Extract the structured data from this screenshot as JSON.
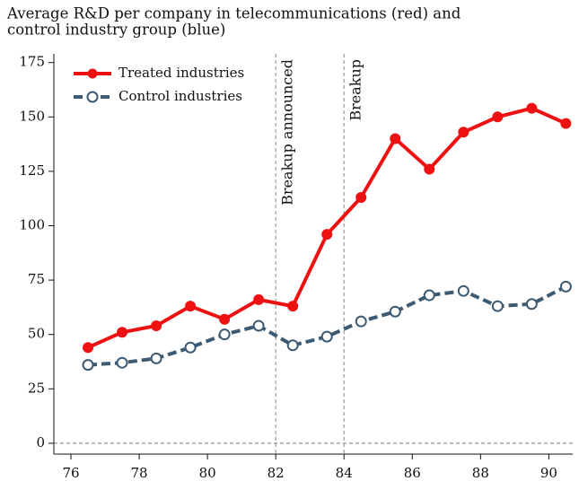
{
  "chart_data": {
    "type": "line",
    "title": [
      "Average R&D per company in telecommunications (red) and",
      "control industry group (blue)"
    ],
    "x": [
      76.5,
      77.5,
      78.5,
      79.5,
      80.5,
      81.5,
      82.5,
      83.5,
      84.5,
      85.5,
      86.5,
      87.5,
      88.5,
      89.5,
      90.5
    ],
    "series": [
      {
        "name": "Treated industries",
        "color": "#ee1111",
        "values": [
          44,
          51,
          54,
          63,
          57,
          66,
          63,
          96,
          113,
          140,
          126,
          143,
          150,
          154,
          147
        ]
      },
      {
        "name": "Control industries",
        "color": "#3d5a73",
        "values": [
          36,
          37,
          39,
          44,
          50,
          54,
          45,
          49,
          56,
          60.5,
          68,
          70,
          63,
          64,
          72
        ]
      }
    ],
    "xlim": [
      75.5,
      90.7
    ],
    "xticks": [
      76,
      78,
      80,
      82,
      84,
      86,
      88,
      90
    ],
    "ylim": [
      -5,
      179
    ],
    "yticks": [
      0,
      25,
      50,
      75,
      100,
      125,
      150,
      175
    ],
    "annotations": [
      {
        "x": 82,
        "text": "Breakup announced"
      },
      {
        "x": 84,
        "text": "Breakup"
      }
    ],
    "legend": "top-left"
  }
}
